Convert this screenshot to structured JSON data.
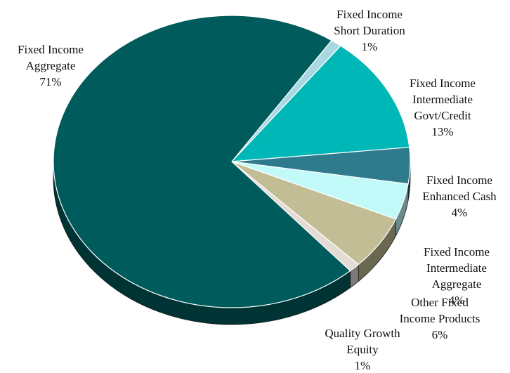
{
  "chart_data": {
    "type": "pie",
    "style": "3d",
    "title": "",
    "slices": [
      {
        "label_lines": [
          "Fixed Income",
          "Short Duration"
        ],
        "pct_label": "1%",
        "value": 1,
        "color": "#a8d8e2"
      },
      {
        "label_lines": [
          "Fixed Income",
          "Intermediate",
          "Govt/Credit"
        ],
        "pct_label": "13%",
        "value": 13,
        "color": "#00b7b7"
      },
      {
        "label_lines": [
          "Fixed Income",
          "Enhanced Cash"
        ],
        "pct_label": "4%",
        "value": 4,
        "color": "#2e7b8e"
      },
      {
        "label_lines": [
          "Fixed Income",
          "Intermediate",
          "Aggregate"
        ],
        "pct_label": "4%",
        "value": 4,
        "color": "#c2fafa"
      },
      {
        "label_lines": [
          "Other Fixed",
          "Income Products"
        ],
        "pct_label": "6%",
        "value": 6,
        "color": "#c3bd95"
      },
      {
        "label_lines": [
          "Quality Growth",
          "Equity"
        ],
        "pct_label": "1%",
        "value": 1,
        "color": "#e3dcd4"
      },
      {
        "label_lines": [
          "Fixed Income",
          "Aggregate"
        ],
        "pct_label": "71%",
        "value": 71,
        "color": "#005c5c"
      }
    ]
  }
}
